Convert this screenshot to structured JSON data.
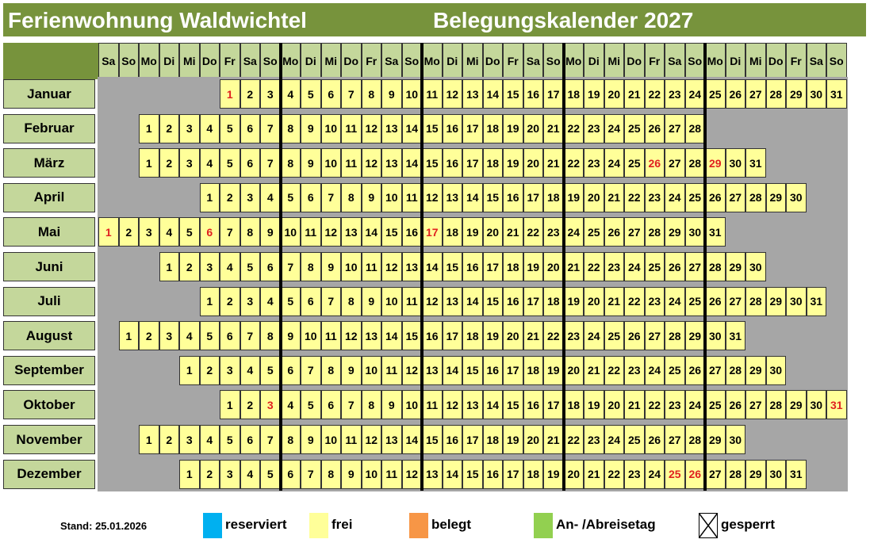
{
  "header": {
    "property_name": "Ferienwohnung Waldwichtel",
    "calendar_title": "Belegungskalender 2027"
  },
  "weekday_headers": [
    "Sa",
    "So",
    "Mo",
    "Di",
    "Mi",
    "Do",
    "Fr",
    "Sa",
    "So",
    "Mo",
    "Di",
    "Mi",
    "Do",
    "Fr",
    "Sa",
    "So",
    "Mo",
    "Di",
    "Mi",
    "Do",
    "Fr",
    "Sa",
    "So",
    "Mo",
    "Di",
    "Mi",
    "Do",
    "Fr",
    "Sa",
    "So",
    "Mo",
    "Di",
    "Mi",
    "Do",
    "Fr",
    "Sa",
    "So"
  ],
  "months": [
    {
      "name": "Januar",
      "start_col": 6,
      "days": 31,
      "highlighted": [
        1
      ]
    },
    {
      "name": "Februar",
      "start_col": 2,
      "days": 28,
      "highlighted": []
    },
    {
      "name": "März",
      "start_col": 2,
      "days": 31,
      "highlighted": [
        26,
        29
      ]
    },
    {
      "name": "April",
      "start_col": 5,
      "days": 30,
      "highlighted": []
    },
    {
      "name": "Mai",
      "start_col": 0,
      "days": 31,
      "highlighted": [
        1,
        6,
        17
      ]
    },
    {
      "name": "Juni",
      "start_col": 3,
      "days": 30,
      "highlighted": []
    },
    {
      "name": "Juli",
      "start_col": 5,
      "days": 31,
      "highlighted": []
    },
    {
      "name": "August",
      "start_col": 1,
      "days": 31,
      "highlighted": []
    },
    {
      "name": "September",
      "start_col": 4,
      "days": 30,
      "highlighted": []
    },
    {
      "name": "Oktober",
      "start_col": 6,
      "days": 31,
      "highlighted": [
        3,
        31
      ]
    },
    {
      "name": "November",
      "start_col": 2,
      "days": 30,
      "highlighted": []
    },
    {
      "name": "Dezember",
      "start_col": 4,
      "days": 31,
      "highlighted": [
        25,
        26
      ]
    }
  ],
  "legend": {
    "stand_label": "Stand:",
    "stand_date": "25.01.2026",
    "items": [
      {
        "label": "reserviert",
        "color": "#00b0f0",
        "icon": "blue-swatch"
      },
      {
        "label": "frei",
        "color": "#ffff99",
        "icon": "yellow-swatch"
      },
      {
        "label": "belegt",
        "color": "#f79646",
        "icon": "orange-swatch"
      },
      {
        "label": "An- /Abreisetag",
        "color": "#92d050",
        "icon": "green-swatch"
      },
      {
        "label": "gesperrt",
        "color": "#ffffff",
        "icon": "crossed-box-icon"
      }
    ]
  },
  "colors": {
    "title_bar": "#77933c",
    "header_cell": "#c4d79b",
    "free_day": "#ffff99",
    "empty_cell": "#a6a6a6",
    "holiday_text": "#e02020"
  }
}
